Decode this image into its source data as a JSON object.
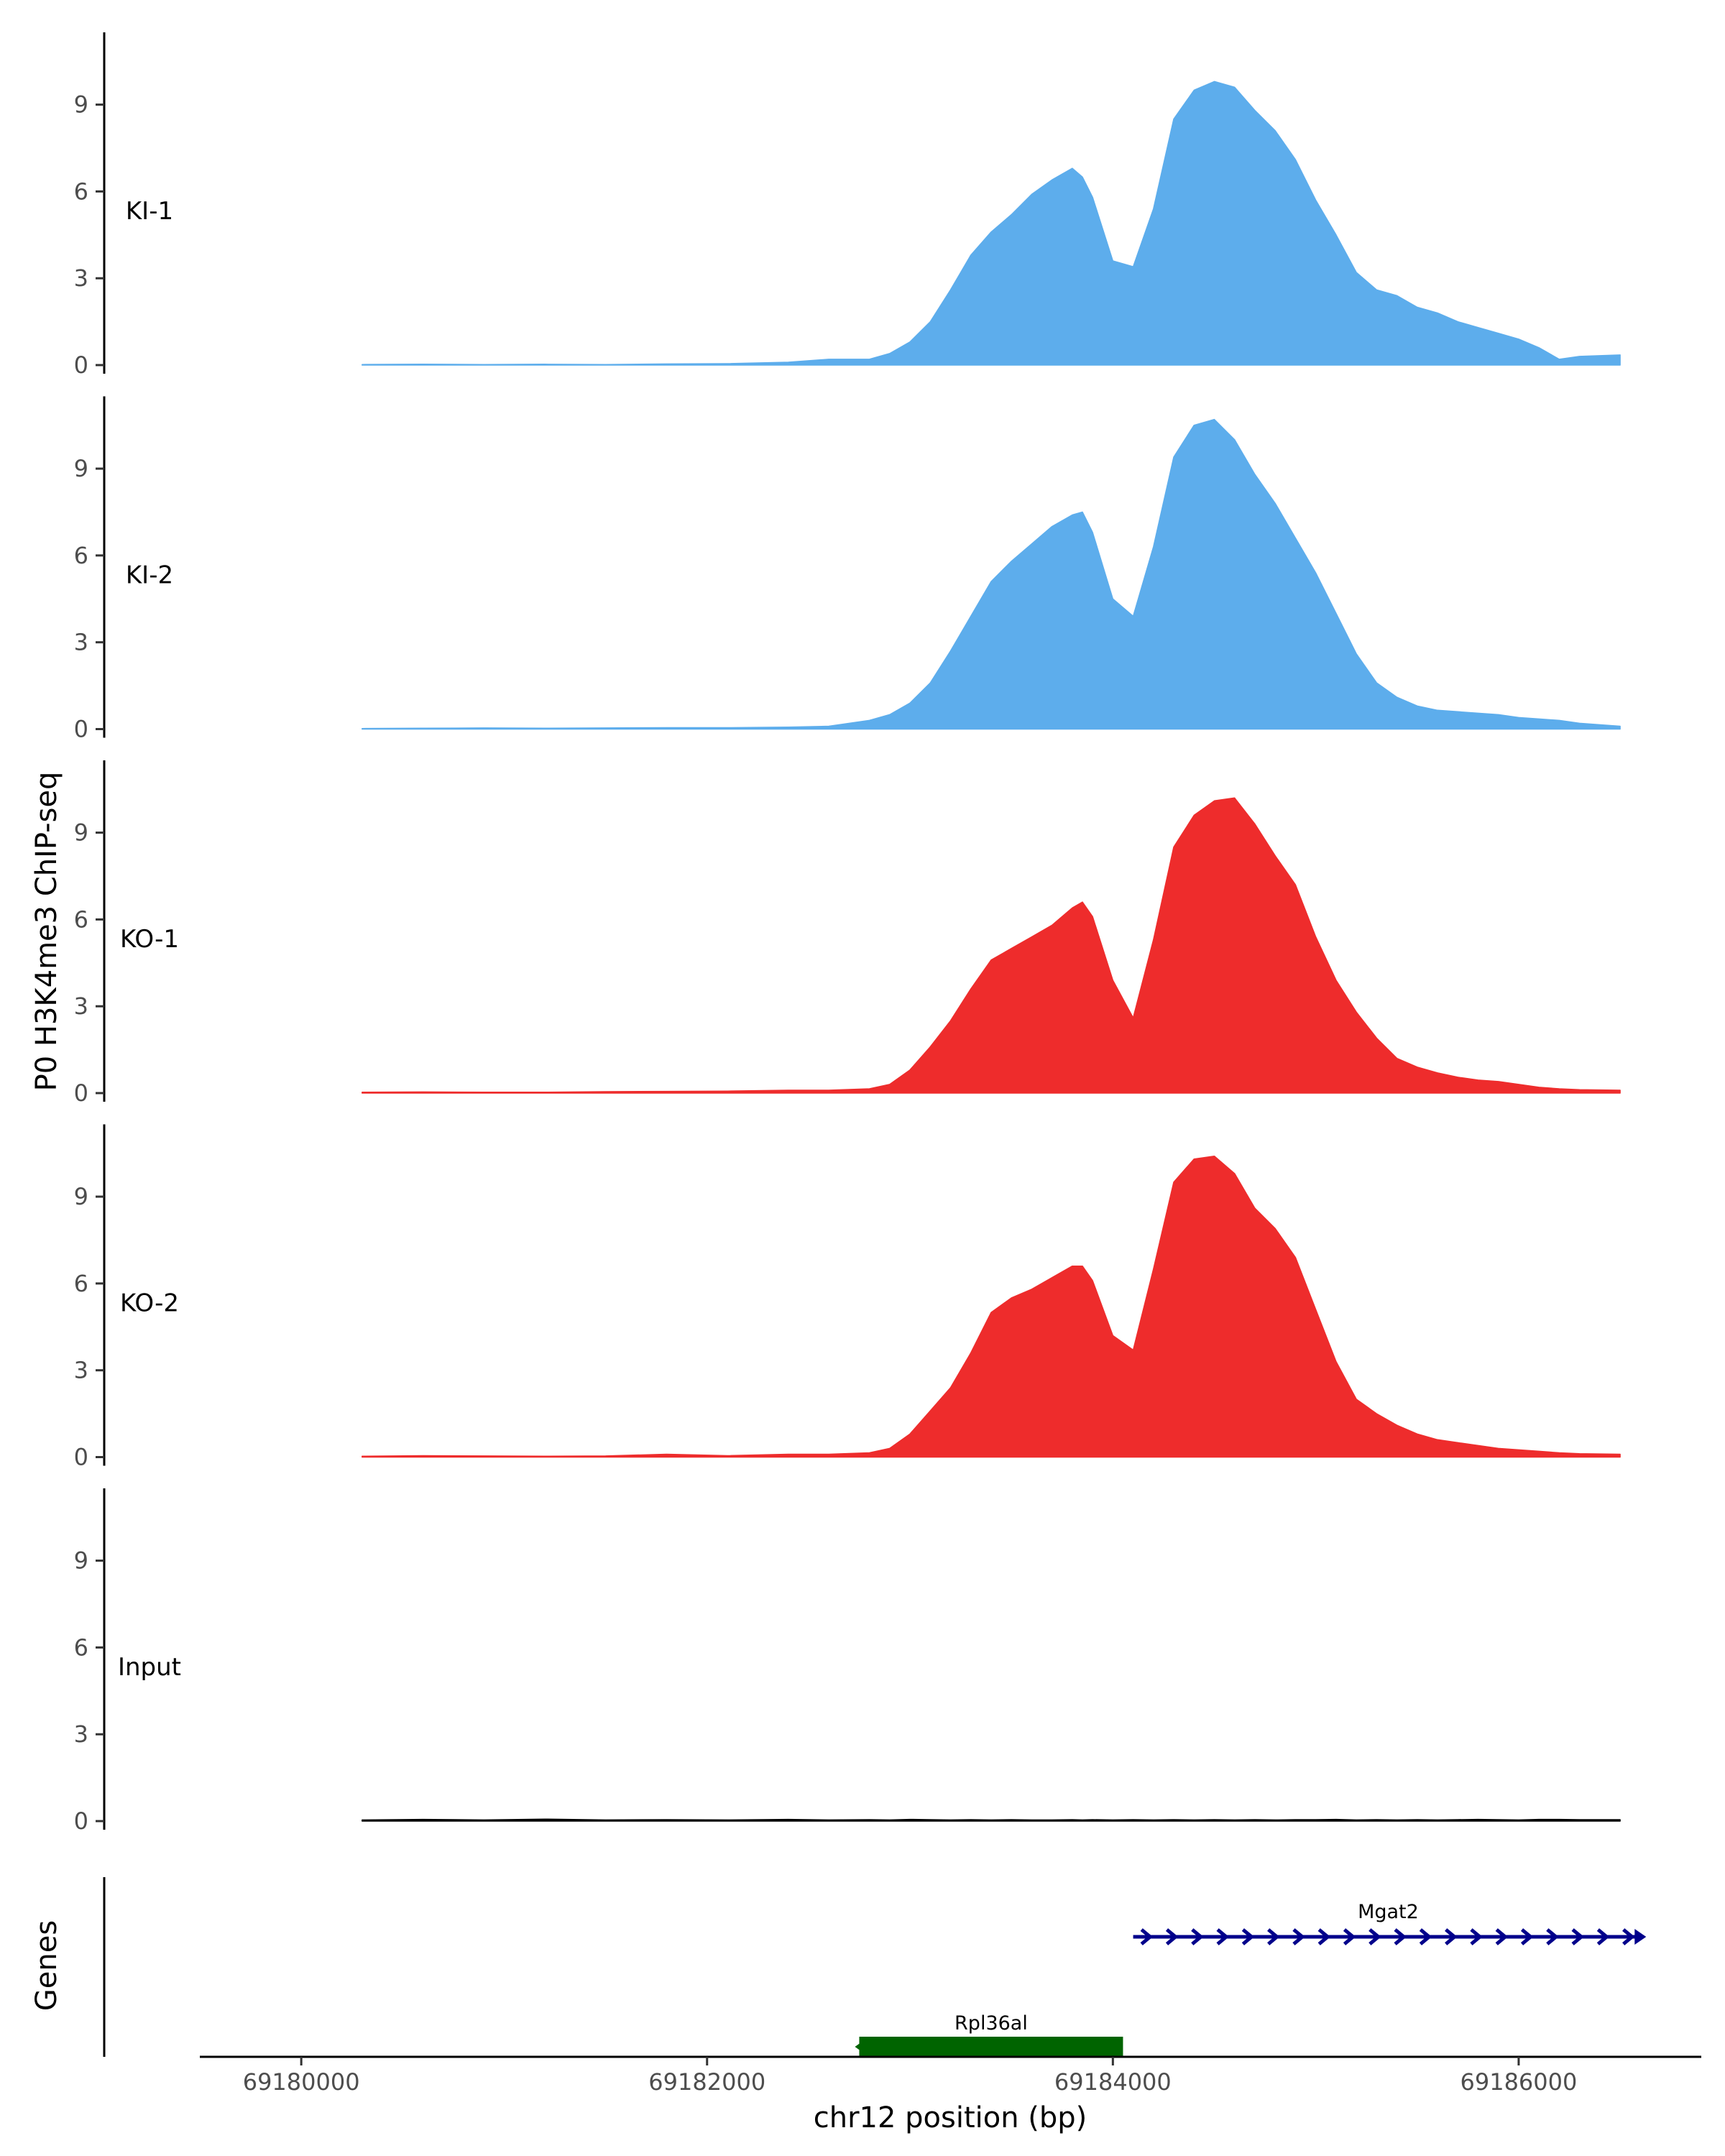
{
  "chart_data": {
    "type": "area",
    "ylabel": "P0 H3K4me3 ChIP-seq",
    "xlabel": "chr12 position (bp)",
    "xlim": [
      69179500,
      69186900
    ],
    "ylim": [
      0,
      11.2
    ],
    "y_ticks": [
      0,
      3,
      6,
      9
    ],
    "x_ticks": [
      69180000,
      69182000,
      69184000,
      69186000
    ],
    "x_tick_labels": [
      "69180000",
      "69182000",
      "69184000",
      "69186000"
    ],
    "x": [
      69180300,
      69180600,
      69180900,
      69181200,
      69181500,
      69181800,
      69182100,
      69182400,
      69182600,
      69182800,
      69182900,
      69183000,
      69183100,
      69183200,
      69183300,
      69183400,
      69183500,
      69183600,
      69183700,
      69183800,
      69183850,
      69183900,
      69184000,
      69184100,
      69184200,
      69184300,
      69184400,
      69184500,
      69184600,
      69184700,
      69184800,
      69184900,
      69185000,
      69185100,
      69185200,
      69185300,
      69185400,
      69185500,
      69185600,
      69185700,
      69185800,
      69185900,
      69186000,
      69186100,
      69186200,
      69186300,
      69186500
    ],
    "series": [
      {
        "name": "KI-1",
        "color": "#5DADEC",
        "values": [
          0.02,
          0.03,
          0.02,
          0.03,
          0.02,
          0.04,
          0.05,
          0.1,
          0.2,
          0.2,
          0.4,
          0.8,
          1.5,
          2.6,
          3.8,
          4.6,
          5.2,
          5.9,
          6.4,
          6.8,
          6.5,
          5.8,
          3.6,
          3.4,
          5.4,
          8.5,
          9.5,
          9.8,
          9.6,
          8.8,
          8.1,
          7.1,
          5.7,
          4.5,
          3.2,
          2.6,
          2.4,
          2.0,
          1.8,
          1.5,
          1.3,
          1.1,
          0.9,
          0.6,
          0.2,
          0.3,
          0.35
        ]
      },
      {
        "name": "KI-2",
        "color": "#5DADEC",
        "values": [
          0.02,
          0.03,
          0.04,
          0.03,
          0.04,
          0.05,
          0.05,
          0.07,
          0.1,
          0.3,
          0.5,
          0.9,
          1.6,
          2.7,
          3.9,
          5.1,
          5.8,
          6.4,
          7.0,
          7.4,
          7.5,
          6.8,
          4.5,
          3.9,
          6.3,
          9.4,
          10.5,
          10.7,
          10.0,
          8.8,
          7.8,
          6.6,
          5.4,
          4.0,
          2.6,
          1.6,
          1.1,
          0.8,
          0.65,
          0.6,
          0.55,
          0.5,
          0.4,
          0.35,
          0.3,
          0.2,
          0.1
        ]
      },
      {
        "name": "KO-1",
        "color": "#EE2C2C",
        "values": [
          0.03,
          0.04,
          0.03,
          0.03,
          0.05,
          0.06,
          0.07,
          0.1,
          0.1,
          0.15,
          0.3,
          0.8,
          1.6,
          2.5,
          3.6,
          4.6,
          5.0,
          5.4,
          5.8,
          6.4,
          6.6,
          6.1,
          3.9,
          2.6,
          5.3,
          8.5,
          9.6,
          10.1,
          10.2,
          9.3,
          8.2,
          7.2,
          5.4,
          3.9,
          2.8,
          1.9,
          1.2,
          0.9,
          0.7,
          0.55,
          0.45,
          0.4,
          0.3,
          0.2,
          0.15,
          0.12,
          0.1
        ]
      },
      {
        "name": "KO-2",
        "color": "#EE2C2C",
        "values": [
          0.03,
          0.05,
          0.04,
          0.03,
          0.04,
          0.1,
          0.05,
          0.1,
          0.1,
          0.15,
          0.3,
          0.8,
          1.6,
          2.4,
          3.6,
          5.0,
          5.5,
          5.8,
          6.2,
          6.6,
          6.6,
          6.1,
          4.2,
          3.7,
          6.5,
          9.5,
          10.3,
          10.4,
          9.8,
          8.6,
          7.9,
          6.9,
          5.1,
          3.3,
          2.0,
          1.5,
          1.1,
          0.8,
          0.6,
          0.5,
          0.4,
          0.3,
          0.25,
          0.2,
          0.15,
          0.12,
          0.1
        ]
      },
      {
        "name": "Input",
        "color": "#000000",
        "values": [
          0.04,
          0.06,
          0.04,
          0.07,
          0.04,
          0.05,
          0.04,
          0.06,
          0.04,
          0.05,
          0.04,
          0.06,
          0.05,
          0.04,
          0.05,
          0.04,
          0.05,
          0.04,
          0.04,
          0.05,
          0.04,
          0.05,
          0.04,
          0.05,
          0.04,
          0.05,
          0.04,
          0.05,
          0.04,
          0.05,
          0.04,
          0.05,
          0.05,
          0.06,
          0.04,
          0.05,
          0.04,
          0.05,
          0.04,
          0.05,
          0.06,
          0.05,
          0.04,
          0.06,
          0.06,
          0.05,
          0.05
        ]
      }
    ],
    "genes_label": "Genes",
    "genes": [
      {
        "name": "Rpl36al",
        "start": 69182750,
        "end": 69184050,
        "strand": "-",
        "color": "#006400"
      },
      {
        "name": "Mgat2",
        "start": 69184100,
        "end": 69186600,
        "strand": "+",
        "color": "#00008B"
      }
    ]
  }
}
